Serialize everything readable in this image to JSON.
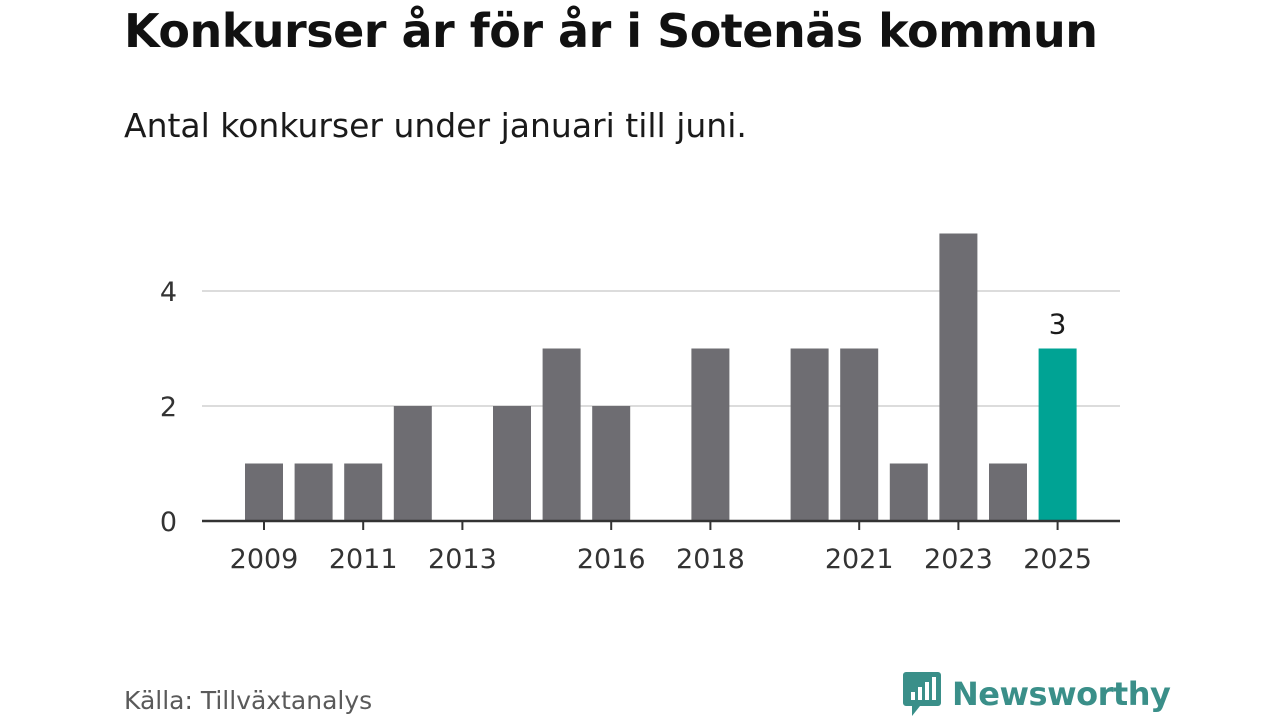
{
  "header": {
    "title": "Konkurser år för år i Sotenäs kommun",
    "subtitle": "Antal konkurser under januari till juni."
  },
  "footer": {
    "source": "Källa: Tillväxtanalys",
    "brand": "Newsworthy",
    "brand_icon": "bar-chart-speech-bubble-icon"
  },
  "colors": {
    "bar": "#6e6d72",
    "highlight": "#00a394",
    "grid": "#dcdcdc",
    "axis": "#333333",
    "brand": "#3a8f89"
  },
  "chart_data": {
    "type": "bar",
    "x": [
      2009,
      2010,
      2011,
      2012,
      2013,
      2014,
      2015,
      2016,
      2017,
      2018,
      2019,
      2020,
      2021,
      2022,
      2023,
      2024,
      2025
    ],
    "values": [
      1,
      1,
      1,
      2,
      0,
      2,
      3,
      2,
      0,
      3,
      0,
      3,
      3,
      1,
      5,
      1,
      3
    ],
    "highlight_index": 16,
    "data_labels": [
      {
        "index": 16,
        "text": "3"
      }
    ],
    "x_tick_labels": [
      "2009",
      "2011",
      "2013",
      "2016",
      "2018",
      "2021",
      "2023",
      "2025"
    ],
    "y_ticks": [
      0,
      2,
      4
    ],
    "y_tick_labels": [
      "0",
      "2",
      "4"
    ],
    "ylim": [
      0,
      5
    ],
    "grid": true,
    "xlabel": "",
    "ylabel": "",
    "legend": "none"
  }
}
